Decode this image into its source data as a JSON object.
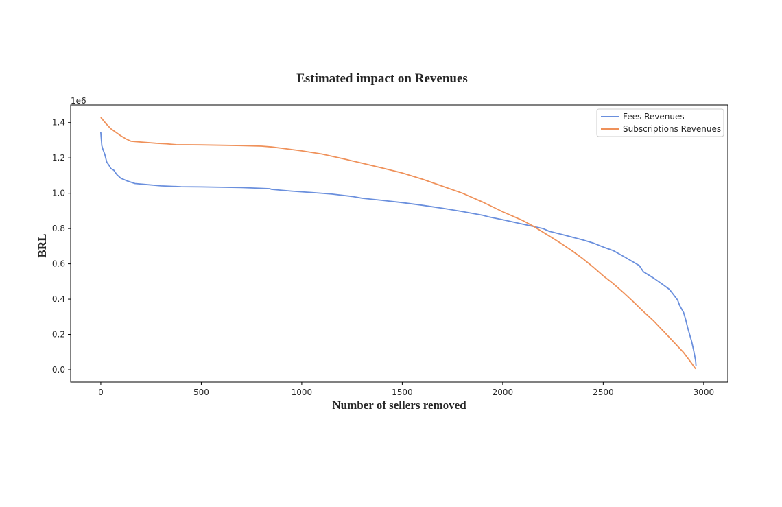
{
  "chart_data": {
    "type": "line",
    "title": "Estimated impact on Revenues",
    "xlabel": "Number of sellers removed",
    "ylabel": "BRL",
    "y_offset_label": "1e6",
    "xlim": [
      -150,
      3120
    ],
    "ylim": [
      -70000,
      1500000
    ],
    "x_ticks": [
      0,
      500,
      1000,
      1500,
      2000,
      2500,
      3000
    ],
    "x_tick_labels": [
      "0",
      "500",
      "1000",
      "1500",
      "2000",
      "2500",
      "3000"
    ],
    "y_ticks": [
      0,
      200000,
      400000,
      600000,
      800000,
      1000000,
      1200000,
      1400000
    ],
    "y_tick_labels": [
      "0.0",
      "0.2",
      "0.4",
      "0.6",
      "0.8",
      "1.0",
      "1.2",
      "1.4"
    ],
    "grid": false,
    "legend_position": "top-right",
    "series": [
      {
        "name": "Fees Revenues",
        "color": "#6a8fdd",
        "x": [
          0,
          5,
          10,
          20,
          30,
          40,
          50,
          65,
          80,
          100,
          130,
          170,
          220,
          300,
          400,
          500,
          600,
          700,
          800,
          840,
          850,
          950,
          1050,
          1150,
          1250,
          1300,
          1400,
          1500,
          1600,
          1700,
          1800,
          1900,
          1930,
          2000,
          2100,
          2200,
          2230,
          2300,
          2400,
          2450,
          2500,
          2550,
          2600,
          2650,
          2680,
          2700,
          2750,
          2800,
          2830,
          2850,
          2870,
          2880,
          2900,
          2910,
          2920,
          2930,
          2940,
          2950,
          2955,
          2960,
          2962
        ],
        "y": [
          1345000,
          1270000,
          1250000,
          1220000,
          1175000,
          1160000,
          1140000,
          1130000,
          1105000,
          1085000,
          1070000,
          1055000,
          1050000,
          1042000,
          1037000,
          1036000,
          1034000,
          1032000,
          1028000,
          1026000,
          1022000,
          1012000,
          1004000,
          995000,
          982000,
          972000,
          960000,
          947000,
          932000,
          915000,
          896000,
          875000,
          866000,
          850000,
          825000,
          800000,
          785000,
          765000,
          735000,
          718000,
          695000,
          675000,
          643000,
          610000,
          590000,
          555000,
          520000,
          480000,
          455000,
          425000,
          395000,
          365000,
          325000,
          285000,
          240000,
          200000,
          160000,
          110000,
          80000,
          50000,
          20000
        ]
      },
      {
        "name": "Subscriptions Revenues",
        "color": "#ef915a",
        "x": [
          0,
          25,
          50,
          75,
          100,
          125,
          150,
          175,
          225,
          275,
          325,
          375,
          500,
          600,
          700,
          800,
          850,
          900,
          1000,
          1100,
          1200,
          1300,
          1400,
          1500,
          1600,
          1700,
          1800,
          1900,
          1950,
          2000,
          2050,
          2100,
          2150,
          2200,
          2250,
          2300,
          2350,
          2400,
          2450,
          2500,
          2550,
          2600,
          2650,
          2700,
          2750,
          2800,
          2850,
          2900,
          2930,
          2960
        ],
        "y": [
          1430000,
          1395000,
          1365000,
          1345000,
          1325000,
          1308000,
          1295000,
          1292000,
          1288000,
          1283000,
          1280000,
          1275000,
          1274000,
          1272000,
          1270000,
          1267000,
          1262000,
          1255000,
          1240000,
          1222000,
          1197000,
          1170000,
          1143000,
          1115000,
          1080000,
          1040000,
          1000000,
          950000,
          923000,
          895000,
          870000,
          845000,
          815000,
          780000,
          745000,
          708000,
          670000,
          628000,
          582000,
          532000,
          488000,
          438000,
          385000,
          330000,
          278000,
          218000,
          158000,
          98000,
          52000,
          5000
        ]
      }
    ]
  }
}
